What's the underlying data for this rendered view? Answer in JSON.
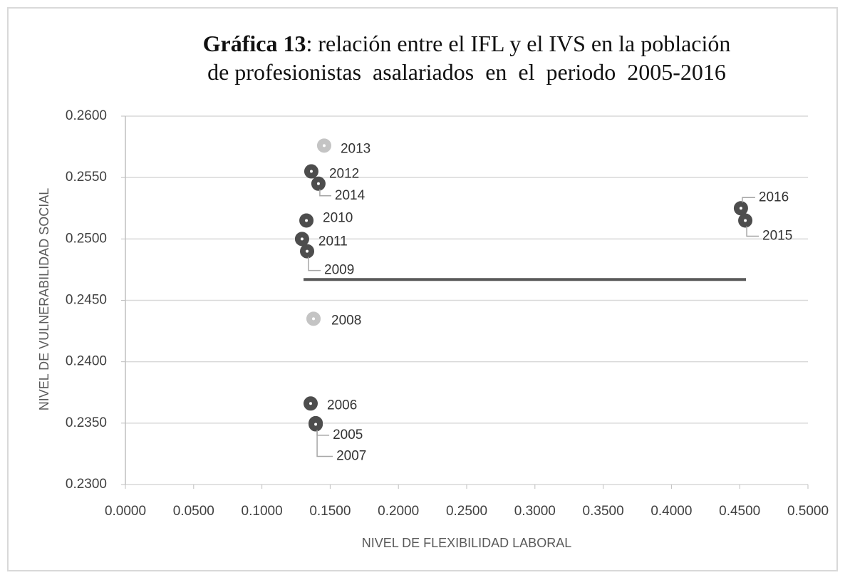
{
  "chart_data": {
    "type": "scatter",
    "title_label": "Gráfica 13",
    "title_lines": [
      ": relación entre el IFL y el IVS en la población",
      "de profesionistas  asalariados  en  el  periodo  2005-2016"
    ],
    "xlabel": "NIVEL DE FLEXIBILIDAD LABORAL",
    "ylabel": "NIVEL DE VULNERABILIDAD SOCIAL",
    "labels": [
      "2013",
      "2012",
      "2014",
      "2010",
      "2011",
      "2009",
      "2008",
      "2006",
      "2005",
      "2007",
      "2016",
      "2015"
    ],
    "x": [
      0.1456,
      0.1362,
      0.1414,
      0.1326,
      0.1294,
      0.1331,
      0.1378,
      0.1357,
      0.1394,
      0.1394,
      0.4509,
      0.4541
    ],
    "values": [
      0.2576,
      0.2555,
      0.2545,
      0.2515,
      0.25,
      0.249,
      0.2435,
      0.2366,
      0.235,
      0.2349,
      0.2525,
      0.2515
    ],
    "colors": [
      "#c4c4c4",
      "#4d4d4d",
      "#4d4d4d",
      "#4d4d4d",
      "#4d4d4d",
      "#4d4d4d",
      "#c4c4c4",
      "#4d4d4d",
      "#4d4d4d",
      "#4d4d4d",
      "#4d4d4d",
      "#4d4d4d"
    ],
    "hline": {
      "y": 0.2467,
      "x": [
        0.1305,
        0.4546
      ],
      "color": "#595959"
    },
    "xlim": [
      0,
      0.5
    ],
    "ylim": [
      0.23,
      0.26
    ],
    "xticks": [
      {
        "value": 0,
        "label": "0.0000"
      },
      {
        "value": 0.05,
        "label": "0.0500"
      },
      {
        "value": 0.1,
        "label": "0.1000"
      },
      {
        "value": 0.15,
        "label": "0.1500"
      },
      {
        "value": 0.2,
        "label": "0.2000"
      },
      {
        "value": 0.25,
        "label": "0.2500"
      },
      {
        "value": 0.3,
        "label": "0.3000"
      },
      {
        "value": 0.35,
        "label": "0.3500"
      },
      {
        "value": 0.4,
        "label": "0.4000"
      },
      {
        "value": 0.45,
        "label": "0.4500"
      },
      {
        "value": 0.5,
        "label": "0.5000"
      }
    ],
    "yticks": [
      {
        "value": 0.23,
        "label": "0.2300"
      },
      {
        "value": 0.235,
        "label": "0.2350"
      },
      {
        "value": 0.24,
        "label": "0.2400"
      },
      {
        "value": 0.245,
        "label": "0.2450"
      },
      {
        "value": 0.25,
        "label": "0.2500"
      },
      {
        "value": 0.255,
        "label": "0.2550"
      },
      {
        "value": 0.26,
        "label": "0.2600"
      }
    ],
    "grid": true
  }
}
